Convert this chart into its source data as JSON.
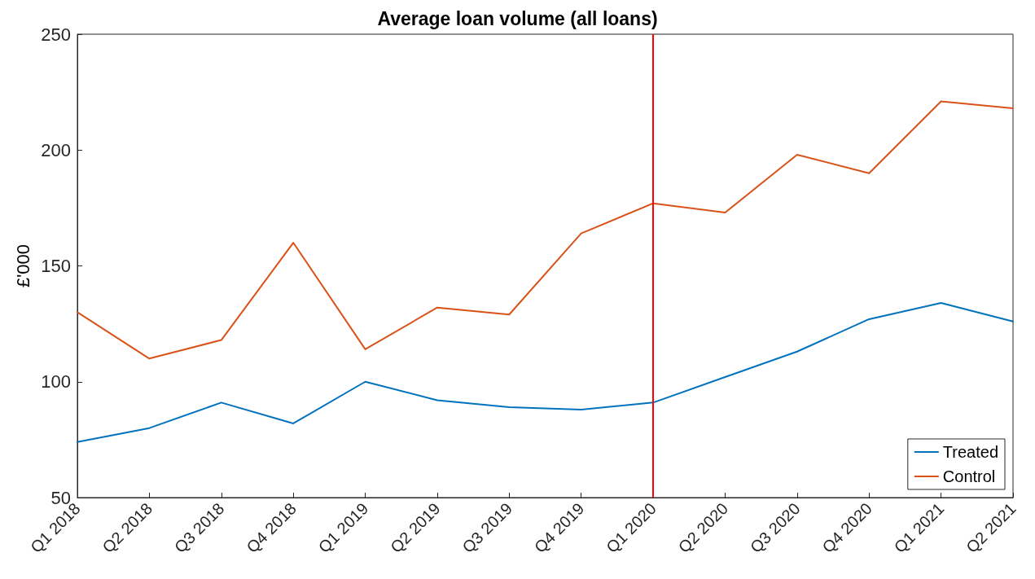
{
  "chart_data": {
    "type": "line",
    "title": "Average loan volume (all loans)",
    "ylabel": "£'000",
    "categories": [
      "Q1 2018",
      "Q2 2018",
      "Q3 2018",
      "Q4 2018",
      "Q1 2019",
      "Q2 2019",
      "Q3 2019",
      "Q4 2019",
      "Q1 2020",
      "Q2 2020",
      "Q3 2020",
      "Q4 2020",
      "Q1 2021",
      "Q2 2021"
    ],
    "series": [
      {
        "name": "Treated",
        "color": "#0072bd",
        "values": [
          74,
          80,
          91,
          82,
          100,
          92,
          89,
          88,
          91,
          102,
          113,
          127,
          134,
          126
        ]
      },
      {
        "name": "Control",
        "color": "#d95319",
        "values": [
          130,
          110,
          118,
          160,
          114,
          132,
          129,
          164,
          177,
          173,
          198,
          190,
          221,
          218
        ]
      }
    ],
    "ylim": [
      50,
      250
    ],
    "yticks": [
      50,
      100,
      150,
      200,
      250
    ],
    "ref_lines": [
      {
        "axis": "x",
        "value": "Q1 2020",
        "color": "#ff0000"
      }
    ],
    "grid": false,
    "legend": "bottom right",
    "marker": "none",
    "line_style": "solid"
  }
}
